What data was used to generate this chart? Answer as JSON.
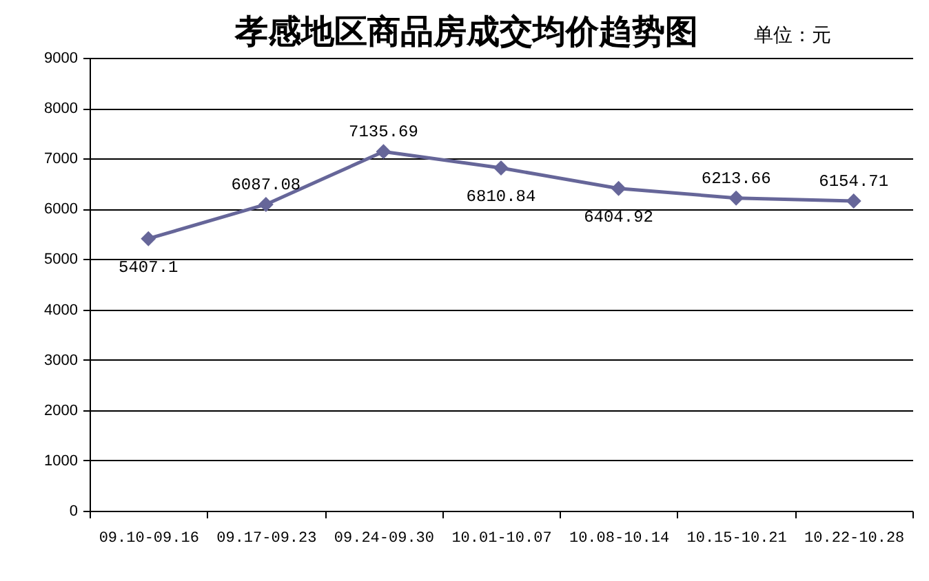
{
  "chart_data": {
    "type": "line",
    "title": "孝感地区商品房成交均价趋势图",
    "annotations": [
      "单位：元"
    ],
    "categories": [
      "09.10-09.16",
      "09.17-09.23",
      "09.24-09.30",
      "10.01-10.07",
      "10.08-10.14",
      "10.15-10.21",
      "10.22-10.28"
    ],
    "series": [
      {
        "color": "#666699",
        "values": [
          5407.1,
          6087.08,
          7135.69,
          6810.84,
          6404.92,
          6213.66,
          6154.71
        ]
      }
    ],
    "ylim": [
      0,
      9000
    ],
    "yticks": [
      0,
      1000,
      2000,
      3000,
      4000,
      5000,
      6000,
      7000,
      8000,
      9000
    ],
    "grid": "y",
    "marker": "diamond",
    "line_style": "solid",
    "data_labels": true
  }
}
